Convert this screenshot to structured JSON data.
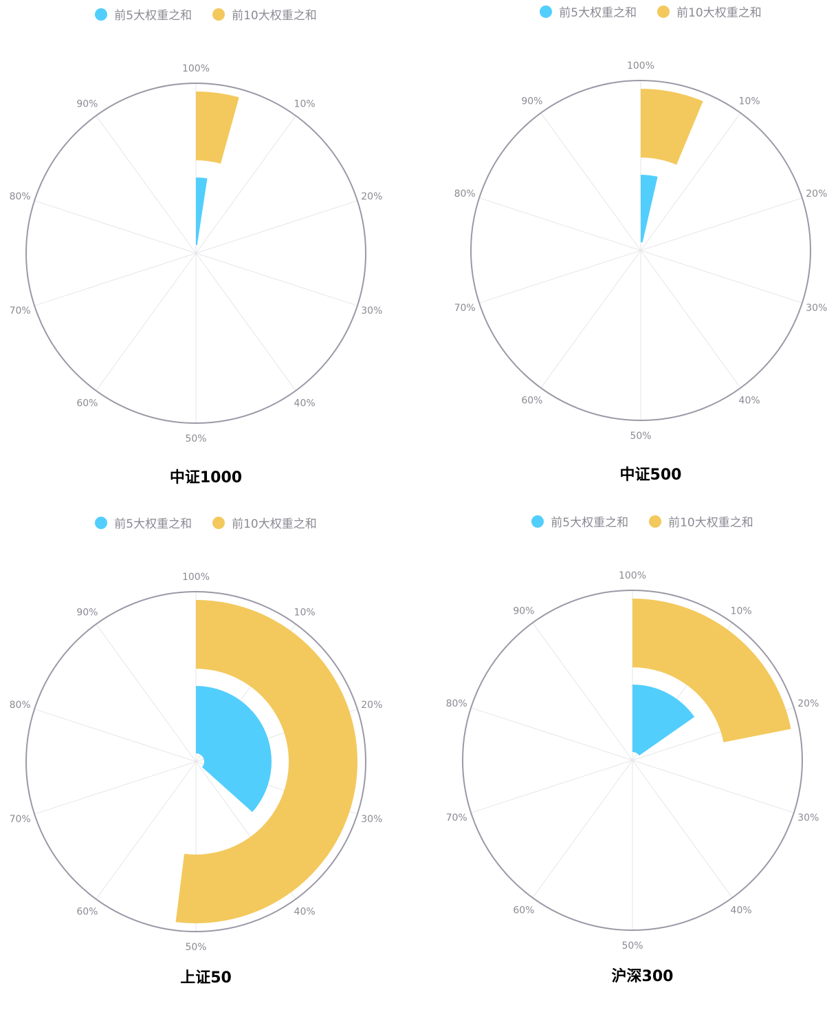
{
  "colors": {
    "top5": "#52cefc",
    "top10": "#f3c95d",
    "axis": "#9b98a6",
    "grid": "#e6e6ea"
  },
  "chart_data": [
    {
      "type": "polar-bar",
      "title": "中证1000",
      "legend": [
        "前5大权重之和",
        "前10大权重之和"
      ],
      "angle_ticks": [
        "100%",
        "10%",
        "20%",
        "30%",
        "40%",
        "50%",
        "60%",
        "70%",
        "80%",
        "90%"
      ],
      "angle_range": [
        0,
        100
      ],
      "series": [
        {
          "name": "前5大权重之和",
          "value": 2.4
        },
        {
          "name": "前10大权重之和",
          "value": 4.3
        }
      ]
    },
    {
      "type": "polar-bar",
      "title": "中证500",
      "legend": [
        "前5大权重之和",
        "前10大权重之和"
      ],
      "angle_ticks": [
        "100%",
        "10%",
        "20%",
        "30%",
        "40%",
        "50%",
        "60%",
        "70%",
        "80%",
        "90%"
      ],
      "angle_range": [
        0,
        100
      ],
      "series": [
        {
          "name": "前5大权重之和",
          "value": 3.6
        },
        {
          "name": "前10大权重之和",
          "value": 6.3
        }
      ]
    },
    {
      "type": "polar-bar",
      "title": "上证50",
      "legend": [
        "前5大权重之和",
        "前10大权重之和"
      ],
      "angle_ticks": [
        "100%",
        "10%",
        "20%",
        "30%",
        "40%",
        "50%",
        "60%",
        "70%",
        "80%",
        "90%"
      ],
      "angle_range": [
        0,
        100
      ],
      "series": [
        {
          "name": "前5大权重之和",
          "value": 36.6
        },
        {
          "name": "前10大权重之和",
          "value": 52.0
        }
      ]
    },
    {
      "type": "polar-bar",
      "title": "沪深300",
      "legend": [
        "前5大权重之和",
        "前10大权重之和"
      ],
      "angle_ticks": [
        "100%",
        "10%",
        "20%",
        "30%",
        "40%",
        "50%",
        "60%",
        "70%",
        "80%",
        "90%"
      ],
      "angle_range": [
        0,
        100
      ],
      "series": [
        {
          "name": "前5大权重之和",
          "value": 15.3
        },
        {
          "name": "前10大权重之和",
          "value": 21.9
        }
      ]
    }
  ]
}
